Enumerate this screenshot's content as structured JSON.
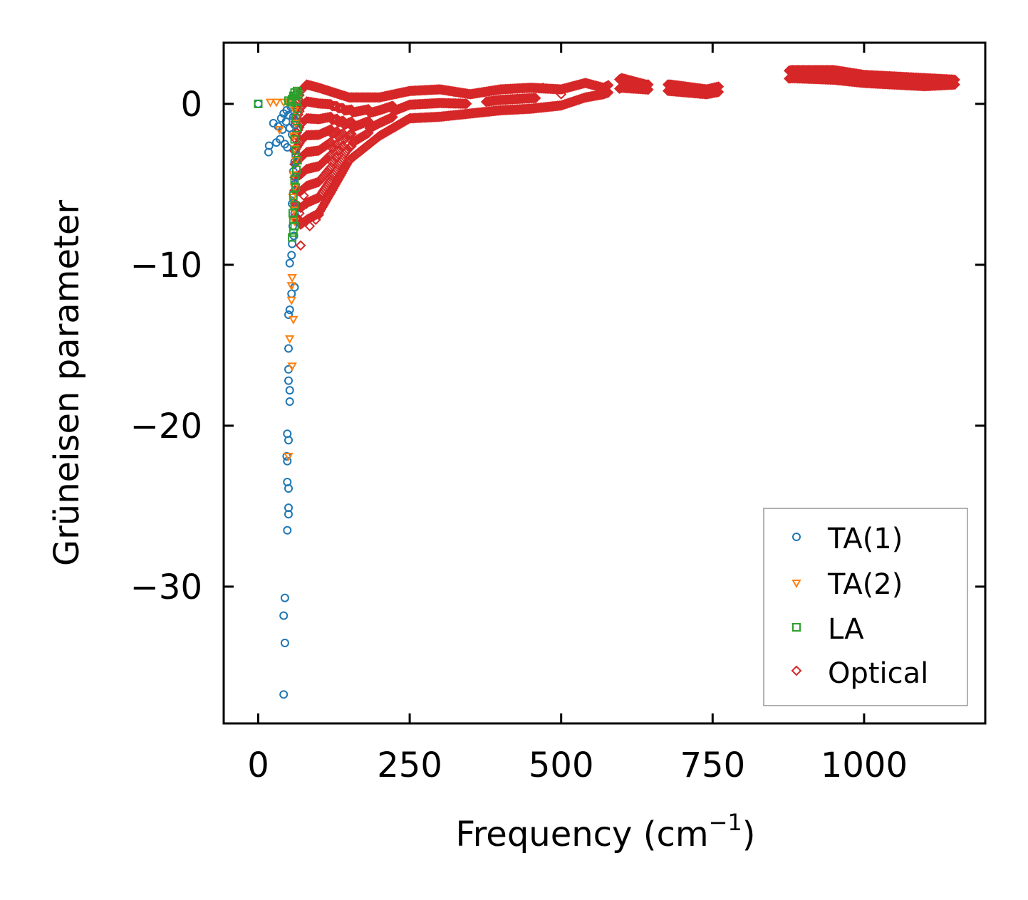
{
  "chart_data": {
    "type": "scatter",
    "xlabel": "Frequency (cm",
    "xlabel_sup": "−1",
    "xlabel_close": ")",
    "ylabel": "Grüneisen parameter",
    "xlim": [
      -57,
      1200
    ],
    "ylim": [
      -38.5,
      3.8
    ],
    "xticks": [
      0,
      250,
      500,
      750,
      1000
    ],
    "xtick_labels": [
      "0",
      "250",
      "500",
      "750",
      "1000"
    ],
    "yticks": [
      0,
      -10,
      -20,
      -30
    ],
    "ytick_labels": [
      "0",
      "−10",
      "−20",
      "−30"
    ],
    "legend_position": "lower-right",
    "series": [
      {
        "name": "TA(1)",
        "color": "#1f77b4",
        "marker": "circle",
        "points": [
          [
            0,
            0
          ],
          [
            17,
            -3
          ],
          [
            18,
            -2.6
          ],
          [
            25,
            -1.2
          ],
          [
            30,
            -2.4
          ],
          [
            33,
            -1.4
          ],
          [
            36,
            -2.2
          ],
          [
            38,
            -0.9
          ],
          [
            40,
            -1.6
          ],
          [
            42,
            -0.6
          ],
          [
            44,
            -2.5
          ],
          [
            46,
            -1.1
          ],
          [
            47,
            -0.4
          ],
          [
            48,
            -2.7
          ],
          [
            50,
            -0.7
          ],
          [
            52,
            -1.5
          ],
          [
            54,
            -0.2
          ],
          [
            56,
            -1.9
          ],
          [
            58,
            -0.8
          ],
          [
            60,
            -1.3
          ],
          [
            62,
            -3.2
          ],
          [
            60,
            -3.6
          ],
          [
            58,
            -4.2
          ],
          [
            62,
            -4.5
          ],
          [
            60,
            -5.0
          ],
          [
            58,
            -5.6
          ],
          [
            56,
            -6.2
          ],
          [
            60,
            -6.8
          ],
          [
            57,
            -7.6
          ],
          [
            59,
            -8.2
          ],
          [
            56,
            -8.7
          ],
          [
            55,
            -9.4
          ],
          [
            52,
            -9.9
          ],
          [
            60,
            -11.4
          ],
          [
            55,
            -11.8
          ],
          [
            52,
            -12.8
          ],
          [
            50,
            -13.1
          ],
          [
            50,
            -15.2
          ],
          [
            50,
            -16.5
          ],
          [
            50,
            -17.2
          ],
          [
            52,
            -17.8
          ],
          [
            52,
            -18.5
          ],
          [
            48,
            -20.5
          ],
          [
            50,
            -20.9
          ],
          [
            47,
            -21.9
          ],
          [
            48,
            -22.2
          ],
          [
            48,
            -23.5
          ],
          [
            50,
            -23.9
          ],
          [
            50,
            -25.1
          ],
          [
            50,
            -25.5
          ],
          [
            48,
            -26.5
          ],
          [
            44,
            -30.7
          ],
          [
            42,
            -31.8
          ],
          [
            44,
            -33.5
          ],
          [
            42,
            -36.7
          ]
        ]
      },
      {
        "name": "TA(2)",
        "color": "#ff7f0e",
        "marker": "triangle-down",
        "points": [
          [
            20,
            0.1
          ],
          [
            30,
            0.1
          ],
          [
            35,
            -1.6
          ],
          [
            42,
            0.1
          ],
          [
            48,
            0.1
          ],
          [
            55,
            0.2
          ],
          [
            60,
            -0.4
          ],
          [
            62,
            -1.2
          ],
          [
            58,
            -2.0
          ],
          [
            60,
            -2.8
          ],
          [
            62,
            -3.5
          ],
          [
            58,
            -4.4
          ],
          [
            60,
            -5.2
          ],
          [
            57,
            -5.8
          ],
          [
            59,
            -6.6
          ],
          [
            60,
            -7.3
          ],
          [
            56,
            -10.8
          ],
          [
            55,
            -11.3
          ],
          [
            55,
            -12.2
          ],
          [
            58,
            -13.4
          ],
          [
            52,
            -14.6
          ],
          [
            56,
            -16.3
          ],
          [
            50,
            -21.9
          ]
        ]
      },
      {
        "name": "LA",
        "color": "#2ca02c",
        "marker": "square",
        "points": [
          [
            0,
            0
          ],
          [
            50,
            0.2
          ],
          [
            54,
            0.1
          ],
          [
            56,
            0.3
          ],
          [
            58,
            0.5
          ],
          [
            60,
            0.7
          ],
          [
            62,
            0.5
          ],
          [
            64,
            0.8
          ],
          [
            66,
            0.6
          ],
          [
            63,
            0.2
          ],
          [
            65,
            -0.3
          ],
          [
            62,
            -0.9
          ],
          [
            64,
            -1.5
          ],
          [
            60,
            -2.2
          ],
          [
            62,
            -2.9
          ],
          [
            65,
            -3.5
          ],
          [
            63,
            -4.1
          ],
          [
            60,
            -4.7
          ],
          [
            62,
            -5.2
          ],
          [
            58,
            -5.7
          ],
          [
            60,
            -6.3
          ],
          [
            57,
            -6.8
          ],
          [
            58,
            -7.2
          ],
          [
            60,
            -7.6
          ],
          [
            58,
            -8.0
          ],
          [
            56,
            -8.3
          ]
        ]
      },
      {
        "name": "Optical",
        "color": "#d62728",
        "marker": "diamond",
        "points": []
      }
    ],
    "optical_band": {
      "upper": [
        [
          60,
          -0.5
        ],
        [
          70,
          0.8
        ],
        [
          80,
          1.2
        ],
        [
          100,
          1.0
        ],
        [
          150,
          0.4
        ],
        [
          200,
          0.4
        ],
        [
          250,
          0.8
        ],
        [
          300,
          0.9
        ],
        [
          350,
          0.6
        ],
        [
          400,
          0.9
        ],
        [
          450,
          1.0
        ],
        [
          500,
          0.9
        ],
        [
          540,
          1.3
        ],
        [
          570,
          1.0
        ],
        [
          600,
          1.6
        ],
        [
          640,
          1.2
        ],
        [
          680,
          1.2
        ],
        [
          740,
          0.9
        ],
        [
          880,
          2.1
        ],
        [
          950,
          2.1
        ],
        [
          1000,
          1.8
        ],
        [
          1050,
          1.7
        ],
        [
          1100,
          1.6
        ],
        [
          1150,
          1.5
        ]
      ],
      "lower": [
        [
          60,
          -7.0
        ],
        [
          70,
          -7.5
        ],
        [
          80,
          -7.2
        ],
        [
          100,
          -6.8
        ],
        [
          120,
          -5.5
        ],
        [
          150,
          -3.5
        ],
        [
          200,
          -2.0
        ],
        [
          250,
          -0.9
        ],
        [
          300,
          -0.8
        ],
        [
          350,
          -0.6
        ],
        [
          400,
          -0.4
        ],
        [
          450,
          -0.3
        ],
        [
          500,
          -0.1
        ],
        [
          540,
          0.4
        ],
        [
          570,
          0.6
        ],
        [
          600,
          1.0
        ],
        [
          640,
          0.9
        ],
        [
          680,
          0.8
        ],
        [
          740,
          0.6
        ],
        [
          880,
          1.6
        ],
        [
          950,
          1.5
        ],
        [
          1000,
          1.3
        ],
        [
          1050,
          1.2
        ],
        [
          1100,
          1.1
        ],
        [
          1150,
          1.2
        ]
      ],
      "gaps": [
        [
          578,
          595
        ],
        [
          645,
          675
        ],
        [
          760,
          875
        ]
      ],
      "outliers": [
        [
          85,
          -7.6
        ],
        [
          95,
          -7.2
        ],
        [
          100,
          -6.9
        ],
        [
          80,
          -6.2
        ],
        [
          75,
          -5.7
        ],
        [
          68,
          -6.8
        ],
        [
          70,
          -8.8
        ],
        [
          65,
          -7.1
        ],
        [
          752,
          0.9
        ],
        [
          1030,
          1.4
        ],
        [
          500,
          0.6
        ],
        [
          470,
          1.0
        ]
      ]
    }
  },
  "legend": {
    "items": [
      {
        "label": "TA(1)"
      },
      {
        "label": "TA(2)"
      },
      {
        "label": "LA"
      },
      {
        "label": "Optical"
      }
    ]
  }
}
